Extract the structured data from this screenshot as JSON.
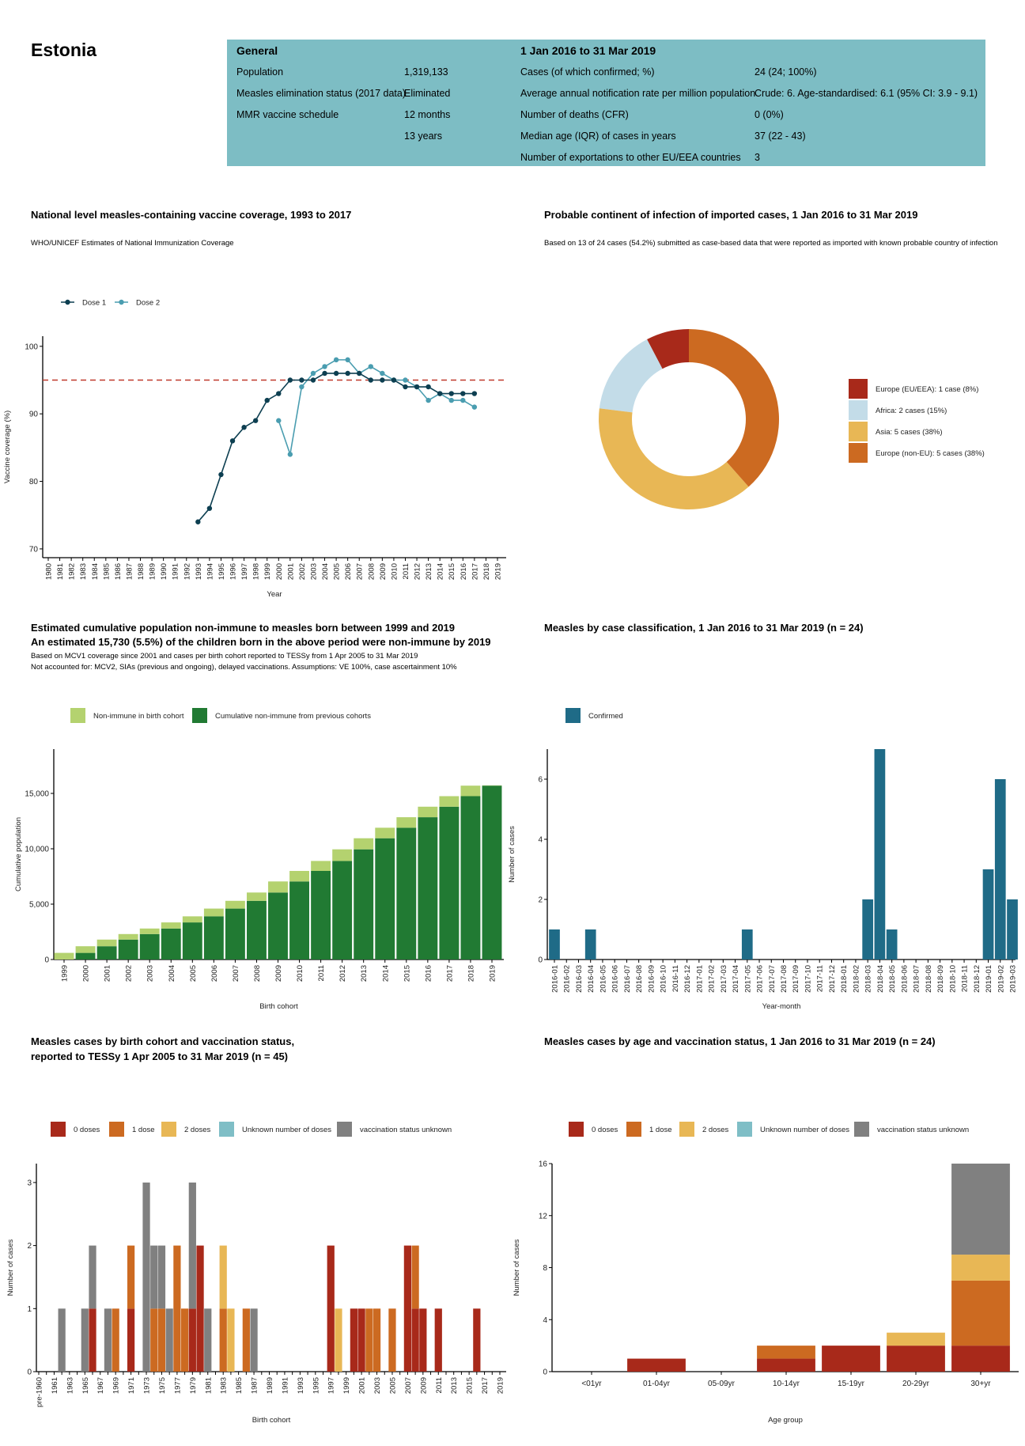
{
  "country": "Estonia",
  "header": {
    "general_title": "General",
    "period_title": "1 Jan 2016 to 31 Mar 2019",
    "general_rows": [
      {
        "label": "Population",
        "value": "1,319,133"
      },
      {
        "label": "Measles elimination status (2017 data)",
        "value": "Eliminated"
      },
      {
        "label": "MMR vaccine schedule",
        "value": "12 months"
      },
      {
        "label": "",
        "value": "13 years"
      }
    ],
    "period_rows": [
      {
        "label": "Cases (of which confirmed; %)",
        "value": "24 (24; 100%)"
      },
      {
        "label": "Average annual notification rate per million population",
        "value": "Crude: 6. Age-standardised: 6.1 (95% CI: 3.9 - 9.1)"
      },
      {
        "label": "Number of deaths (CFR)",
        "value": "0 (0%)"
      },
      {
        "label": "Median age (IQR) of cases in years",
        "value": "37 (22 - 43)"
      },
      {
        "label": "Number of exportations to other EU/EEA countries",
        "value": "3"
      }
    ],
    "box_color": "#7dbdc4"
  },
  "chart_data": [
    {
      "id": "coverage",
      "type": "line",
      "title": "National level measles-containing vaccine coverage, 1993 to 2017",
      "subtitle": "WHO/UNICEF Estimates of National Immunization Coverage",
      "xlabel": "Year",
      "ylabel": "Vaccine coverage (%)",
      "x": [
        1980,
        1981,
        1982,
        1983,
        1984,
        1985,
        1986,
        1987,
        1988,
        1989,
        1990,
        1991,
        1992,
        1993,
        1994,
        1995,
        1996,
        1997,
        1998,
        1999,
        2000,
        2001,
        2002,
        2003,
        2004,
        2005,
        2006,
        2007,
        2008,
        2009,
        2010,
        2011,
        2012,
        2013,
        2014,
        2015,
        2016,
        2017,
        2018,
        2019
      ],
      "ylim": [
        68.7,
        101.5
      ],
      "yticks": [
        70,
        80,
        90,
        100
      ],
      "reference_line": {
        "y": 95,
        "color": "#c0392b",
        "style": "dashed"
      },
      "legend_placement": "top-left",
      "series": [
        {
          "name": "Dose 1",
          "color": "#0d3f51",
          "points": [
            [
              1993,
              74
            ],
            [
              1994,
              76
            ],
            [
              1995,
              81
            ],
            [
              1996,
              86
            ],
            [
              1997,
              88
            ],
            [
              1998,
              89
            ],
            [
              1999,
              92
            ],
            [
              2000,
              93
            ],
            [
              2001,
              95
            ],
            [
              2002,
              95
            ],
            [
              2003,
              95
            ],
            [
              2004,
              96
            ],
            [
              2005,
              96
            ],
            [
              2006,
              96
            ],
            [
              2007,
              96
            ],
            [
              2008,
              95
            ],
            [
              2009,
              95
            ],
            [
              2010,
              95
            ],
            [
              2011,
              94
            ],
            [
              2012,
              94
            ],
            [
              2013,
              94
            ],
            [
              2014,
              93
            ],
            [
              2015,
              93
            ],
            [
              2016,
              93
            ],
            [
              2017,
              93
            ]
          ]
        },
        {
          "name": "Dose 2",
          "color": "#4a9db0",
          "points": [
            [
              2000,
              89
            ],
            [
              2001,
              84
            ],
            [
              2002,
              94
            ],
            [
              2003,
              96
            ],
            [
              2004,
              97
            ],
            [
              2005,
              98
            ],
            [
              2006,
              98
            ],
            [
              2007,
              96
            ],
            [
              2008,
              97
            ],
            [
              2009,
              96
            ],
            [
              2010,
              95
            ],
            [
              2011,
              95
            ],
            [
              2012,
              94
            ],
            [
              2013,
              92
            ],
            [
              2014,
              93
            ],
            [
              2015,
              92
            ],
            [
              2016,
              92
            ],
            [
              2017,
              91
            ]
          ]
        }
      ]
    },
    {
      "id": "continent",
      "type": "pie",
      "donut": true,
      "title": "Probable continent of infection of imported cases, 1 Jan 2016 to 31 Mar 2019",
      "subtitle": "Based on 13 of 24 cases (54.2%) submitted as case-based data that were reported as imported with known probable country of infection",
      "legend_placement": "right",
      "slices": [
        {
          "label": "Europe (EU/EEA): 1 case (8%)",
          "value": 1,
          "color": "#a8291a"
        },
        {
          "label": "Africa: 2 cases (15%)",
          "value": 2,
          "color": "#c3dce8"
        },
        {
          "label": "Asia: 5 cases (38%)",
          "value": 5,
          "color": "#e8b755"
        },
        {
          "label": "Europe (non-EU): 5 cases (38%)",
          "value": 5,
          "color": "#cc6a21"
        }
      ]
    },
    {
      "id": "nonimmune",
      "type": "bar",
      "stacked": true,
      "title": "Estimated cumulative population non-immune to measles born between 1999 and 2019",
      "title2": "An estimated 15,730 (5.5%) of the children born in the above period were non-immune by 2019",
      "subtitle": "Based on MCV1 coverage since 2001 and cases per birth cohort reported to TESSy from 1 Apr 2005 to 31 Mar 2019",
      "subtitle2": "Not accounted for: MCV2, SIAs (previous and ongoing), delayed vaccinations. Assumptions: VE 100%, case ascertainment 10%",
      "xlabel": "Birth cohort",
      "ylabel": "Cumulative population",
      "categories": [
        "1999",
        "2000",
        "2001",
        "2002",
        "2003",
        "2004",
        "2005",
        "2006",
        "2007",
        "2008",
        "2009",
        "2010",
        "2011",
        "2012",
        "2013",
        "2014",
        "2015",
        "2016",
        "2017",
        "2018",
        "2019"
      ],
      "ylim": [
        0,
        19000
      ],
      "yticks": [
        0,
        5000,
        10000,
        15000
      ],
      "legend_placement": "top-left",
      "series": [
        {
          "name": "Cumulative non-immune from previous cohorts",
          "color": "#217a33",
          "values": [
            0,
            600,
            1200,
            1800,
            2300,
            2800,
            3350,
            3900,
            4600,
            5300,
            6050,
            7050,
            8000,
            8900,
            9950,
            10950,
            11900,
            12850,
            13800,
            14750,
            15700
          ]
        },
        {
          "name": "Non-immune in birth cohort",
          "color": "#b4d26f",
          "values": [
            600,
            600,
            600,
            500,
            500,
            550,
            550,
            700,
            700,
            750,
            1000,
            950,
            900,
            1050,
            1000,
            950,
            950,
            950,
            950,
            950,
            30
          ]
        }
      ],
      "legend_order": [
        "Non-immune in birth cohort",
        "Cumulative non-immune from previous cohorts"
      ]
    },
    {
      "id": "classification",
      "type": "bar",
      "title": "Measles by case classification, 1 Jan 2016 to 31 Mar 2019 (n = 24)",
      "xlabel": "Year-month",
      "ylabel": "Number of cases",
      "categories": [
        "2016-01",
        "2016-02",
        "2016-03",
        "2016-04",
        "2016-05",
        "2016-06",
        "2016-07",
        "2016-08",
        "2016-09",
        "2016-10",
        "2016-11",
        "2016-12",
        "2017-01",
        "2017-02",
        "2017-03",
        "2017-04",
        "2017-05",
        "2017-06",
        "2017-07",
        "2017-08",
        "2017-09",
        "2017-10",
        "2017-11",
        "2017-12",
        "2018-01",
        "2018-02",
        "2018-03",
        "2018-04",
        "2018-05",
        "2018-06",
        "2018-07",
        "2018-08",
        "2018-09",
        "2018-10",
        "2018-11",
        "2018-12",
        "2019-01",
        "2019-02",
        "2019-03"
      ],
      "ylim": [
        0,
        7
      ],
      "yticks": [
        0,
        2,
        4,
        6
      ],
      "legend_placement": "top-left",
      "series": [
        {
          "name": "Confirmed",
          "color": "#1f6b87",
          "values": [
            1,
            0,
            0,
            1,
            0,
            0,
            0,
            0,
            0,
            0,
            0,
            0,
            0,
            0,
            0,
            0,
            1,
            0,
            0,
            0,
            0,
            0,
            0,
            0,
            0,
            0,
            2,
            7,
            1,
            0,
            0,
            0,
            0,
            0,
            0,
            0,
            3,
            6,
            2
          ]
        }
      ]
    },
    {
      "id": "cohort_vacc",
      "type": "bar",
      "stacked": true,
      "title": "Measles cases by birth cohort and vaccination status,",
      "title2": "reported to TESSy 1 Apr 2005 to 31 Mar 2019 (n = 45)",
      "xlabel": "Birth cohort",
      "ylabel": "Number of cases",
      "categories": [
        "pre-1960",
        "1960",
        "1961",
        "1962",
        "1963",
        "1964",
        "1965",
        "1966",
        "1967",
        "1968",
        "1969",
        "1970",
        "1971",
        "1972",
        "1973",
        "1974",
        "1975",
        "1976",
        "1977",
        "1978",
        "1979",
        "1980",
        "1981",
        "1982",
        "1983",
        "1984",
        "1985",
        "1986",
        "1987",
        "1988",
        "1989",
        "1990",
        "1991",
        "1992",
        "1993",
        "1994",
        "1995",
        "1996",
        "1997",
        "1998",
        "1999",
        "2000",
        "2001",
        "2002",
        "2003",
        "2004",
        "2005",
        "2006",
        "2007",
        "2008",
        "2009",
        "2010",
        "2011",
        "2012",
        "2013",
        "2014",
        "2015",
        "2016",
        "2017",
        "2018",
        "2019"
      ],
      "ylim": [
        0,
        3.3
      ],
      "yticks": [
        0,
        1,
        2,
        3
      ],
      "legend_placement": "top-left",
      "series": [
        {
          "name": "0 doses",
          "color": "#a8291a",
          "values": {
            "1966": 1,
            "1971": 1,
            "1979": 1,
            "1980": 2,
            "1997": 2,
            "2000": 1,
            "2001": 1,
            "2007": 2,
            "2008": 1,
            "2009": 1,
            "2011": 1,
            "2016": 1
          }
        },
        {
          "name": "1 dose",
          "color": "#cc6a21",
          "values": {
            "1969": 1,
            "1971": 1,
            "1974": 1,
            "1975": 1,
            "1977": 2,
            "1978": 1,
            "1983": 1,
            "1986": 1,
            "2002": 1,
            "2003": 1,
            "2005": 1,
            "2008": 1
          }
        },
        {
          "name": "2 doses",
          "color": "#e8b755",
          "values": {
            "1983": 1,
            "1984": 1,
            "1998": 1
          }
        },
        {
          "name": "Unknown number of doses",
          "color": "#7fbec6",
          "values": {}
        },
        {
          "name": "vaccination status unknown",
          "color": "#808080",
          "values": {
            "1962": 1,
            "1965": 1,
            "1966": 1,
            "1968": 1,
            "1973": 3,
            "1974": 1,
            "1975": 1,
            "1976": 1,
            "1979": 2,
            "1981": 1,
            "1987": 1
          }
        }
      ]
    },
    {
      "id": "age_vacc",
      "type": "bar",
      "stacked": true,
      "title": "Measles cases by age and vaccination status, 1 Jan 2016 to 31 Mar 2019 (n = 24)",
      "xlabel": "Age group",
      "ylabel": "Number of cases",
      "categories": [
        "<01yr",
        "01-04yr",
        "05-09yr",
        "10-14yr",
        "15-19yr",
        "20-29yr",
        "30+yr"
      ],
      "ylim": [
        0,
        16
      ],
      "yticks": [
        0,
        4,
        8,
        12,
        16
      ],
      "legend_placement": "top-left",
      "series": [
        {
          "name": "0 doses",
          "color": "#a8291a",
          "values": [
            0,
            1,
            0,
            1,
            2,
            2,
            2
          ]
        },
        {
          "name": "1 dose",
          "color": "#cc6a21",
          "values": [
            0,
            0,
            0,
            1,
            0,
            0,
            5
          ]
        },
        {
          "name": "2 doses",
          "color": "#e8b755",
          "values": [
            0,
            0,
            0,
            0,
            0,
            1,
            2
          ]
        },
        {
          "name": "Unknown number of doses",
          "color": "#7fbec6",
          "values": [
            0,
            0,
            0,
            0,
            0,
            0,
            0
          ]
        },
        {
          "name": "vaccination status unknown",
          "color": "#808080",
          "values": [
            0,
            0,
            0,
            0,
            0,
            0,
            7
          ]
        }
      ]
    }
  ]
}
